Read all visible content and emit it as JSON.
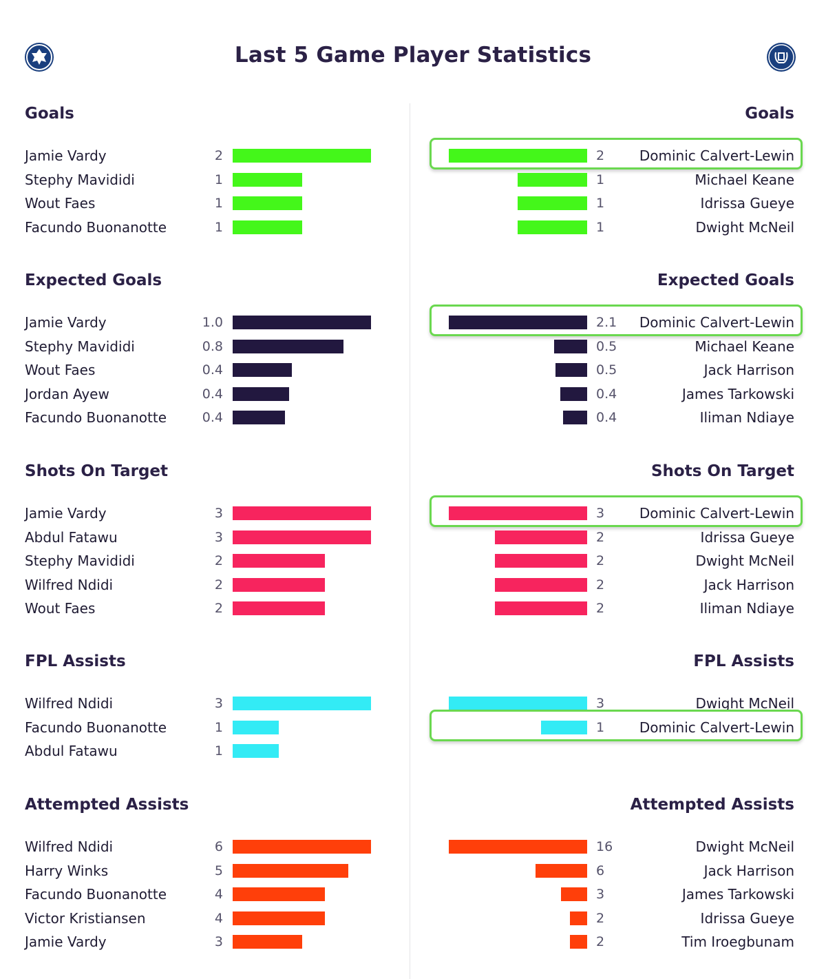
{
  "title": "Last 5 Game Player Statistics",
  "icons": {
    "left_badge": "club-crest-icon",
    "right_badge": "club-crest-icon"
  },
  "colors": {
    "goals": "#44f71a",
    "expected_goals": "#22183f",
    "shots_on_target": "#f7245e",
    "fpl_assists": "#33ebf5",
    "attempted_assists": "#ff3f0a",
    "highlight": "#6ad84f"
  },
  "chart_data": [
    {
      "type": "bar",
      "side": "left",
      "title": "Goals",
      "color": "#44f71a",
      "xlim": [
        0,
        2
      ],
      "categories": [
        "Jamie Vardy",
        "Stephy Mavididi",
        "Wout Faes",
        "Facundo Buonanotte"
      ],
      "values": [
        2,
        1,
        1,
        1
      ],
      "labels": [
        "2",
        "1",
        "1",
        "1"
      ],
      "highlight": null
    },
    {
      "type": "bar",
      "side": "right",
      "title": "Goals",
      "color": "#44f71a",
      "xlim": [
        0,
        2
      ],
      "categories": [
        "Dominic Calvert-Lewin",
        "Michael Keane",
        "Idrissa Gueye",
        "Dwight McNeil"
      ],
      "values": [
        2,
        1,
        1,
        1
      ],
      "labels": [
        "2",
        "1",
        "1",
        "1"
      ],
      "highlight": 0
    },
    {
      "type": "bar",
      "side": "left",
      "title": "Expected Goals",
      "color": "#22183f",
      "xlim": [
        0,
        1.0
      ],
      "categories": [
        "Jamie Vardy",
        "Stephy Mavididi",
        "Wout Faes",
        "Jordan Ayew",
        "Facundo Buonanotte"
      ],
      "values": [
        1.0,
        0.8,
        0.43,
        0.41,
        0.38
      ],
      "labels": [
        "1.0",
        "0.8",
        "0.4",
        "0.4",
        "0.4"
      ],
      "highlight": null
    },
    {
      "type": "bar",
      "side": "right",
      "title": "Expected Goals",
      "color": "#22183f",
      "xlim": [
        0,
        2.1
      ],
      "categories": [
        "Dominic Calvert-Lewin",
        "Michael Keane",
        "Jack Harrison",
        "James Tarkowski",
        "Iliman Ndiaye"
      ],
      "values": [
        2.1,
        0.5,
        0.48,
        0.41,
        0.37
      ],
      "labels": [
        "2.1",
        "0.5",
        "0.5",
        "0.4",
        "0.4"
      ],
      "highlight": 0
    },
    {
      "type": "bar",
      "side": "left",
      "title": "Shots On Target",
      "color": "#f7245e",
      "xlim": [
        0,
        3
      ],
      "categories": [
        "Jamie Vardy",
        "Abdul Fatawu",
        "Stephy Mavididi",
        "Wilfred Ndidi",
        "Wout Faes"
      ],
      "values": [
        3,
        3,
        2,
        2,
        2
      ],
      "labels": [
        "3",
        "3",
        "2",
        "2",
        "2"
      ],
      "highlight": null
    },
    {
      "type": "bar",
      "side": "right",
      "title": "Shots On Target",
      "color": "#f7245e",
      "xlim": [
        0,
        3
      ],
      "categories": [
        "Dominic Calvert-Lewin",
        "Idrissa Gueye",
        "Dwight McNeil",
        "Jack Harrison",
        "Iliman Ndiaye"
      ],
      "values": [
        3,
        2,
        2,
        2,
        2
      ],
      "labels": [
        "3",
        "2",
        "2",
        "2",
        "2"
      ],
      "highlight": 0
    },
    {
      "type": "bar",
      "side": "left",
      "title": "FPL Assists",
      "color": "#33ebf5",
      "xlim": [
        0,
        3
      ],
      "categories": [
        "Wilfred Ndidi",
        "Facundo Buonanotte",
        "Abdul Fatawu"
      ],
      "values": [
        3,
        1,
        1
      ],
      "labels": [
        "3",
        "1",
        "1"
      ],
      "highlight": null
    },
    {
      "type": "bar",
      "side": "right",
      "title": "FPL Assists",
      "color": "#33ebf5",
      "xlim": [
        0,
        3
      ],
      "categories": [
        "Dwight McNeil",
        "Dominic Calvert-Lewin"
      ],
      "values": [
        3,
        1
      ],
      "labels": [
        "3",
        "1"
      ],
      "highlight": 1
    },
    {
      "type": "bar",
      "side": "left",
      "title": "Attempted Assists",
      "color": "#ff3f0a",
      "xlim": [
        0,
        6
      ],
      "categories": [
        "Wilfred Ndidi",
        "Harry Winks",
        "Facundo Buonanotte",
        "Victor Kristiansen",
        "Jamie Vardy"
      ],
      "values": [
        6,
        5,
        4,
        4,
        3
      ],
      "labels": [
        "6",
        "5",
        "4",
        "4",
        "3"
      ],
      "highlight": null
    },
    {
      "type": "bar",
      "side": "right",
      "title": "Attempted Assists",
      "color": "#ff3f0a",
      "xlim": [
        0,
        16
      ],
      "categories": [
        "Dwight McNeil",
        "Jack Harrison",
        "James Tarkowski",
        "Idrissa Gueye",
        "Tim Iroegbunam"
      ],
      "values": [
        16,
        6,
        3,
        2,
        2
      ],
      "labels": [
        "16",
        "6",
        "3",
        "2",
        "2"
      ],
      "highlight": null
    }
  ]
}
